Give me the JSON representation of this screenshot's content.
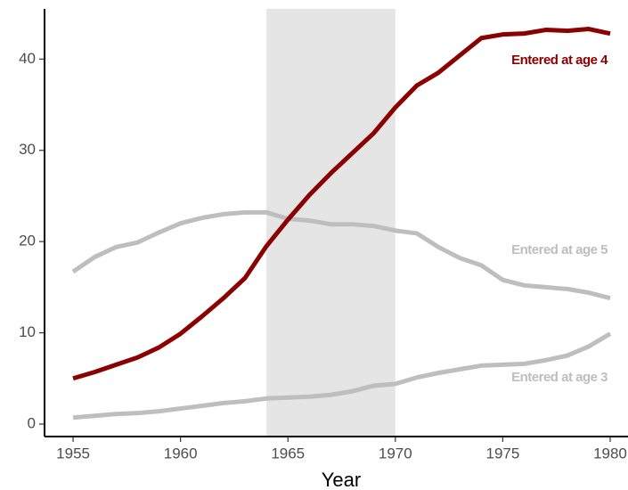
{
  "chart_data": {
    "type": "line",
    "x_label": "Year",
    "x": [
      1955,
      1956,
      1957,
      1958,
      1959,
      1960,
      1961,
      1962,
      1963,
      1964,
      1965,
      1966,
      1967,
      1968,
      1969,
      1970,
      1971,
      1972,
      1973,
      1974,
      1975,
      1976,
      1977,
      1978,
      1979,
      1980
    ],
    "series": [
      {
        "name": "Entered at age 5",
        "color": "#bebebe",
        "values": [
          16.7,
          18.3,
          19.4,
          19.9,
          21.0,
          22.0,
          22.6,
          23.0,
          23.2,
          23.2,
          22.5,
          22.3,
          21.9,
          21.9,
          21.7,
          21.2,
          20.9,
          19.4,
          18.2,
          17.4,
          15.8,
          15.2,
          15.0,
          14.8,
          14.4,
          13.8
        ]
      },
      {
        "name": "Entered at age 3",
        "color": "#bebebe",
        "values": [
          0.7,
          0.9,
          1.1,
          1.2,
          1.4,
          1.7,
          2.0,
          2.3,
          2.5,
          2.8,
          2.9,
          3.0,
          3.2,
          3.6,
          4.2,
          4.4,
          5.1,
          5.6,
          6.0,
          6.4,
          6.5,
          6.6,
          7.0,
          7.5,
          8.5,
          9.9
        ]
      },
      {
        "name": "Entered at age 4",
        "color": "#8b0000",
        "values": [
          5.0,
          5.7,
          6.5,
          7.3,
          8.4,
          9.9,
          11.8,
          13.8,
          16.0,
          19.5,
          22.4,
          25.1,
          27.5,
          29.7,
          31.9,
          34.7,
          37.1,
          38.5,
          40.4,
          42.3,
          42.7,
          42.8,
          43.2,
          43.1,
          43.3,
          42.8
        ]
      }
    ],
    "shaded_span": [
      1964,
      1970
    ],
    "shade_color": "#e5e5e5",
    "xlim": [
      1953.67,
      1980.83
    ],
    "ylim": [
      -1.37,
      45.5
    ],
    "xticks": [
      1955,
      1960,
      1965,
      1970,
      1975,
      1980
    ],
    "yticks": [
      0,
      10,
      20,
      30,
      40
    ],
    "grid": false
  }
}
